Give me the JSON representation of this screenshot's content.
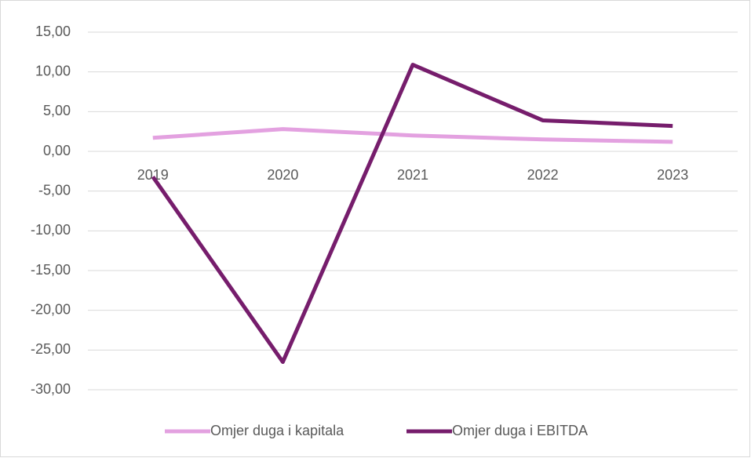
{
  "chart_data": {
    "type": "line",
    "categories": [
      "2019",
      "2020",
      "2021",
      "2022",
      "2023"
    ],
    "series": [
      {
        "name": "Omjer duga i kapitala",
        "color": "#e3a1e0",
        "values": [
          1.7,
          2.8,
          2.0,
          1.5,
          1.2
        ]
      },
      {
        "name": "Omjer duga i EBITDA",
        "color": "#761d6c",
        "values": [
          -3.2,
          -26.5,
          10.9,
          3.9,
          3.2
        ]
      }
    ],
    "ylim": [
      -30,
      15
    ],
    "yticks": [
      {
        "value": -30,
        "label": "-30,00"
      },
      {
        "value": -25,
        "label": "-25,00"
      },
      {
        "value": -20,
        "label": "-20,00"
      },
      {
        "value": -15,
        "label": "-15,00"
      },
      {
        "value": -10,
        "label": "-10,00"
      },
      {
        "value": -5,
        "label": "-5,00"
      },
      {
        "value": 0,
        "label": "0,00"
      },
      {
        "value": 5,
        "label": "5,00"
      },
      {
        "value": 10,
        "label": "10,00"
      },
      {
        "value": 15,
        "label": "15,00"
      }
    ],
    "grid": true,
    "legend": "bottom"
  }
}
